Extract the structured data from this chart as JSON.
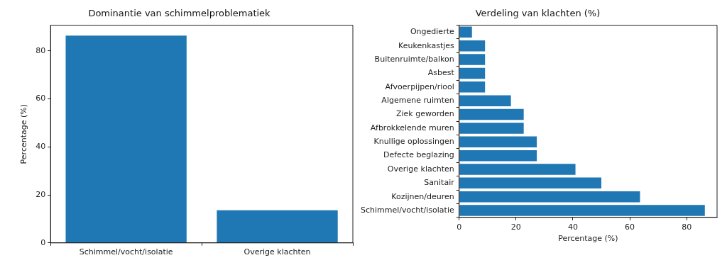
{
  "chart_data": [
    {
      "type": "bar",
      "title": "Dominantie van schimmelproblematiek",
      "ylabel": "Percentage (%)",
      "categories": [
        "Schimmel/vocht/isolatie",
        "Overige klachten"
      ],
      "color": "#1f77b4",
      "values": [
        86.4,
        13.6
      ],
      "ylim": [
        0,
        90.7
      ],
      "yticks": [
        0,
        20,
        40,
        60,
        80
      ],
      "grid": false,
      "legend": false
    },
    {
      "type": "bar",
      "orientation": "horizontal",
      "title": "Verdeling van klachten (%)",
      "xlabel": "Percentage (%)",
      "categories": [
        "Ongedierte",
        "Keukenkastjes",
        "Buitenruimte/balkon",
        "Asbest",
        "Afvoerpijpen/riool",
        "Algemene ruimten",
        "Ziek geworden",
        "Afbrokkelende muren",
        "Knullige oplossingen",
        "Defecte beglazing",
        "Overige klachten",
        "Sanitair",
        "Kozijnen/deuren",
        "Schimmel/vocht/isolatie"
      ],
      "color": "#1f77b4",
      "values": [
        4.5,
        9.1,
        9.1,
        9.1,
        9.1,
        18.2,
        22.7,
        22.7,
        27.3,
        27.3,
        40.9,
        50.0,
        63.6,
        86.4
      ],
      "xlim": [
        0,
        90.7
      ],
      "xticks": [
        0,
        20,
        40,
        60,
        80
      ],
      "grid": false,
      "legend": false
    }
  ]
}
